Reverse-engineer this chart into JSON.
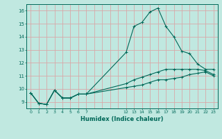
{
  "xlabel": "Humidex (Indice chaleur)",
  "bg_color": "#c0e8e0",
  "grid_color": "#d8a8a8",
  "line_color": "#006858",
  "xlim": [
    -0.5,
    23.5
  ],
  "ylim": [
    8.5,
    16.5
  ],
  "xticks_labels": [
    0,
    1,
    2,
    3,
    4,
    5,
    6,
    7,
    12,
    13,
    14,
    15,
    16,
    17,
    18,
    19,
    20,
    21,
    22,
    23
  ],
  "xticks_grid": [
    0,
    1,
    2,
    3,
    4,
    5,
    6,
    7,
    8,
    9,
    10,
    11,
    12,
    13,
    14,
    15,
    16,
    17,
    18,
    19,
    20,
    21,
    22,
    23
  ],
  "yticks": [
    9,
    10,
    11,
    12,
    13,
    14,
    15,
    16
  ],
  "series": [
    {
      "x": [
        0,
        1,
        2,
        3,
        4,
        5,
        6,
        7,
        12,
        13,
        14,
        15,
        16,
        17,
        18,
        19,
        20,
        21,
        22,
        23
      ],
      "y": [
        9.7,
        8.9,
        8.8,
        9.9,
        9.3,
        9.3,
        9.6,
        9.6,
        12.8,
        14.8,
        15.1,
        15.9,
        16.2,
        14.8,
        14.0,
        12.9,
        12.7,
        11.9,
        11.5,
        11.5
      ]
    },
    {
      "x": [
        0,
        1,
        2,
        3,
        4,
        5,
        6,
        7,
        12,
        13,
        14,
        15,
        16,
        17,
        18,
        19,
        20,
        21,
        22,
        23
      ],
      "y": [
        9.7,
        8.9,
        8.8,
        9.9,
        9.3,
        9.3,
        9.6,
        9.6,
        10.4,
        10.7,
        10.9,
        11.1,
        11.3,
        11.5,
        11.5,
        11.5,
        11.5,
        11.5,
        11.4,
        11.1
      ]
    },
    {
      "x": [
        0,
        1,
        2,
        3,
        4,
        5,
        6,
        7,
        12,
        13,
        14,
        15,
        16,
        17,
        18,
        19,
        20,
        21,
        22,
        23
      ],
      "y": [
        9.7,
        8.9,
        8.8,
        9.9,
        9.3,
        9.3,
        9.6,
        9.6,
        10.1,
        10.2,
        10.3,
        10.5,
        10.7,
        10.7,
        10.8,
        10.9,
        11.1,
        11.2,
        11.3,
        11.0
      ]
    }
  ]
}
